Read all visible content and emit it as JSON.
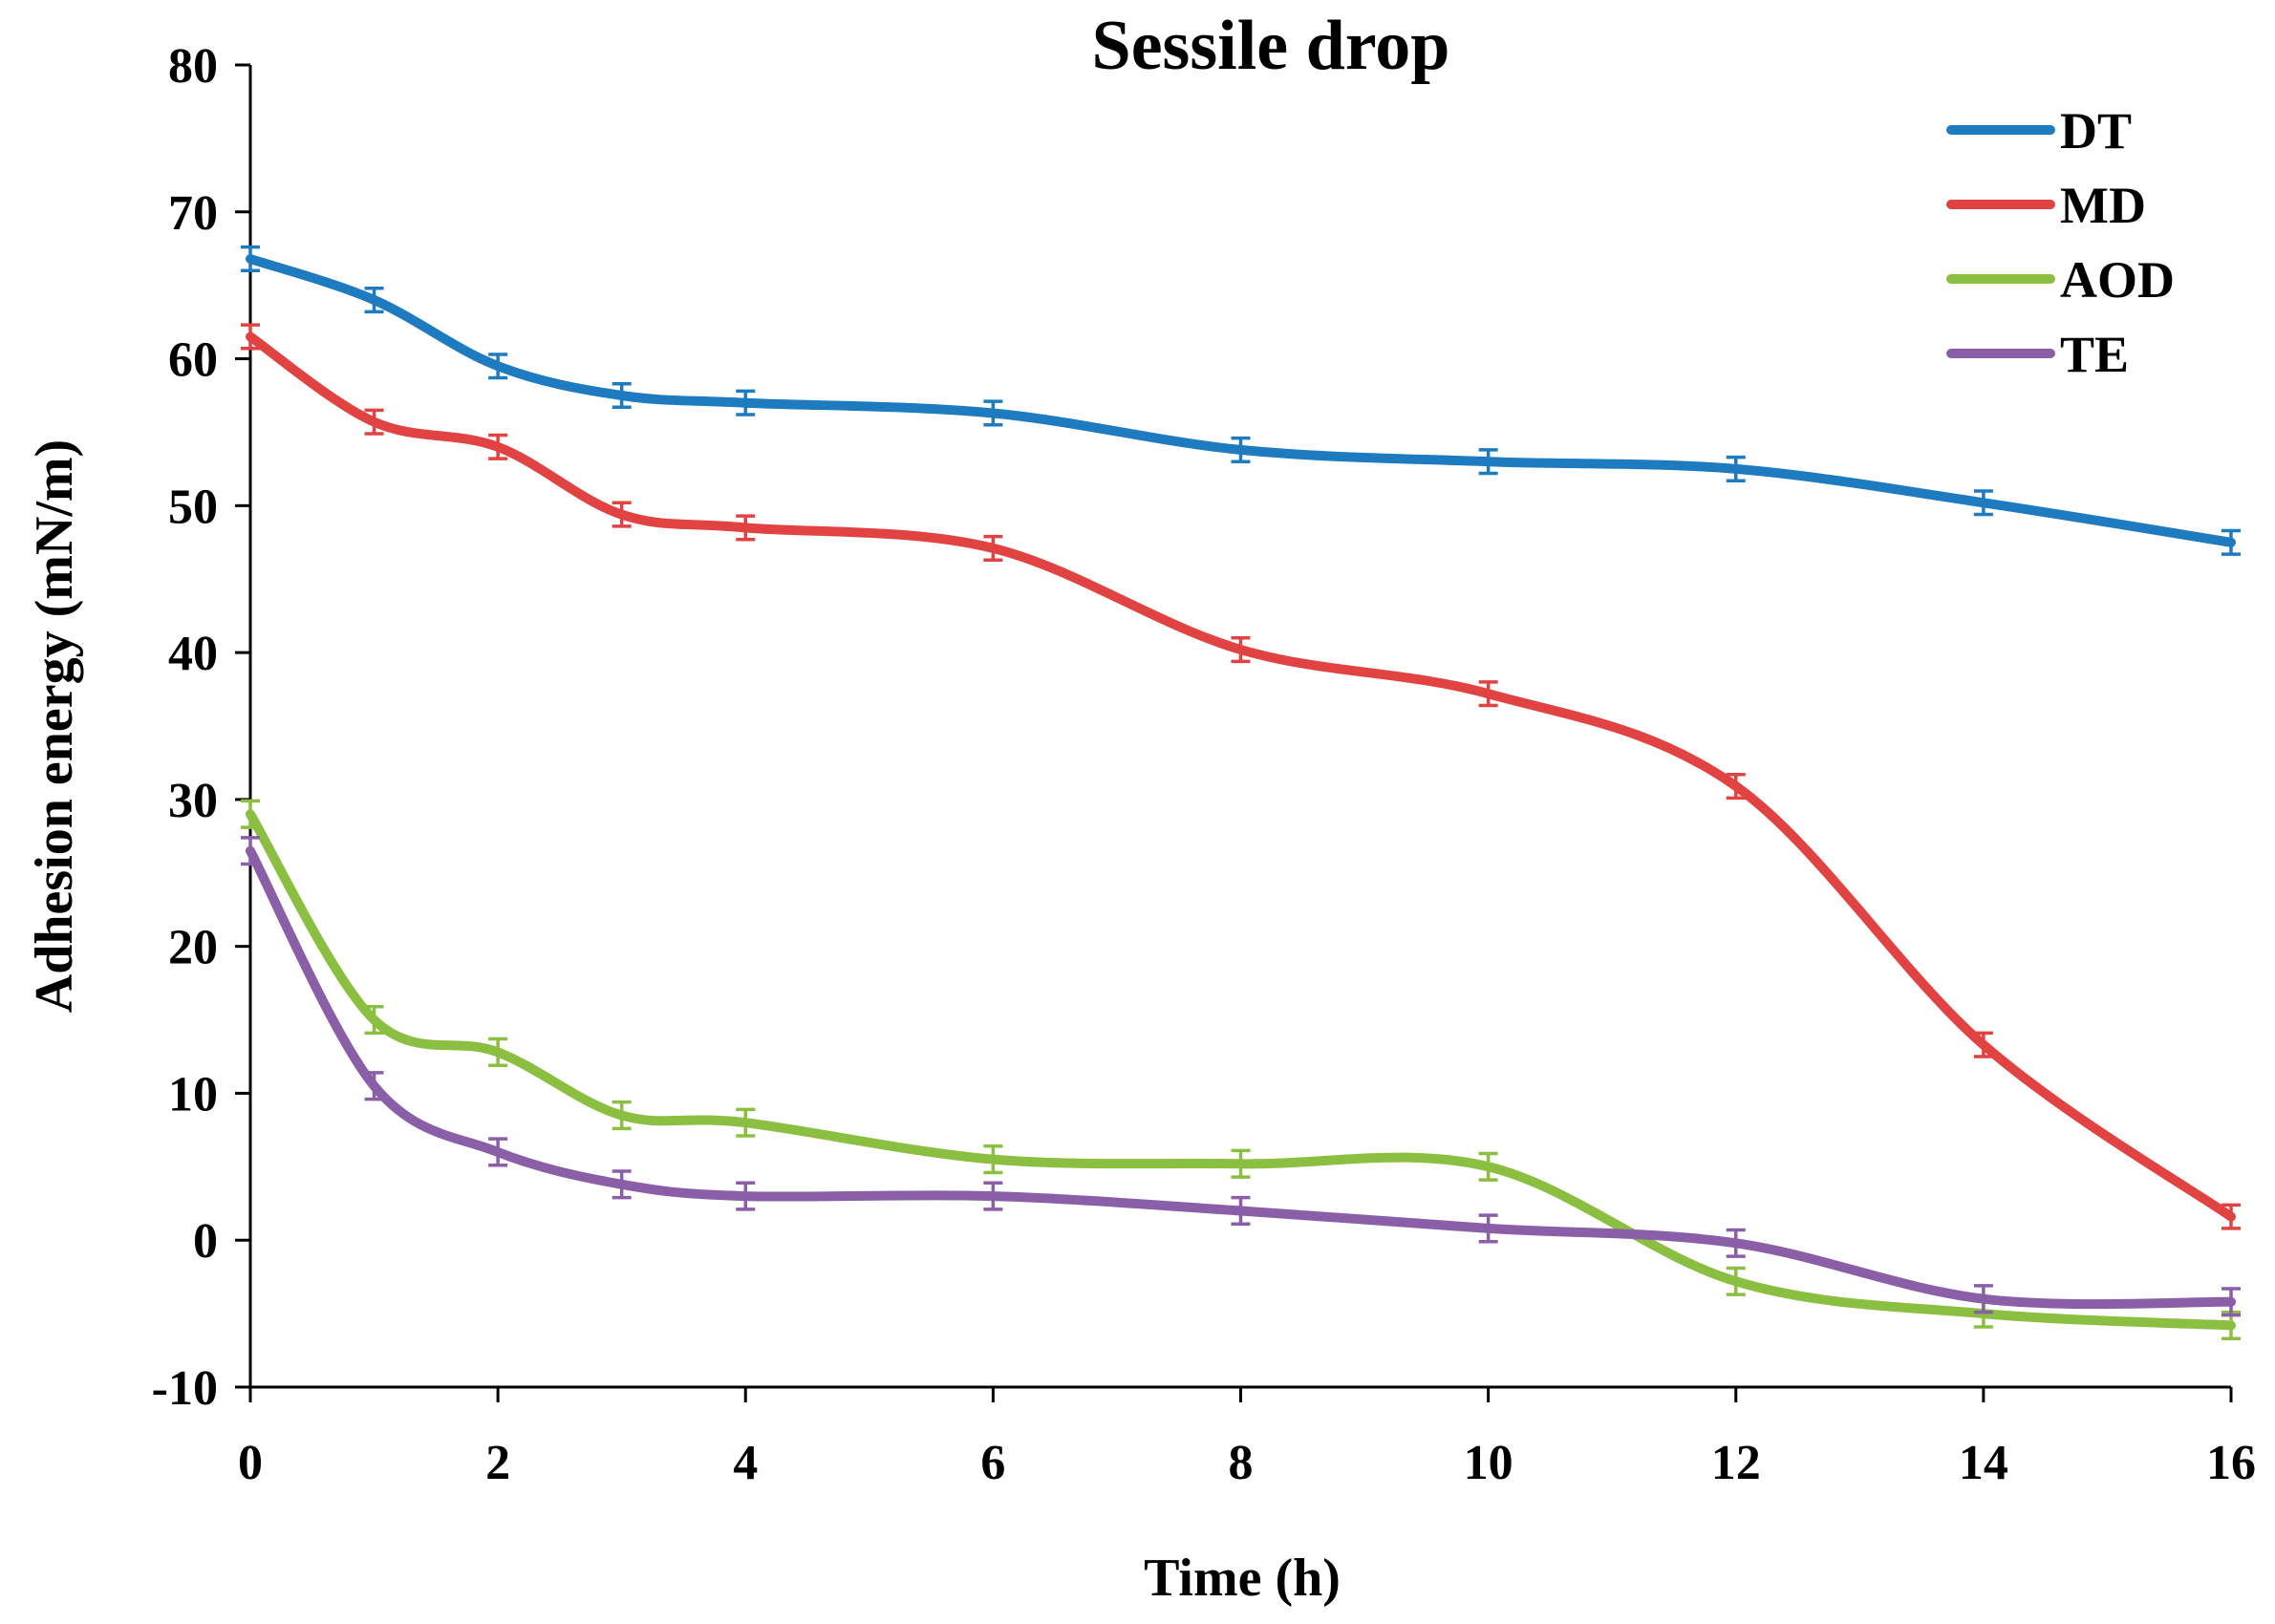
{
  "chart_data": {
    "type": "line",
    "title": "Sessile drop",
    "xlabel": "Time  (h)",
    "ylabel": "Adhesion energy (mN/m)",
    "xlim": [
      0,
      16
    ],
    "ylim": [
      -10,
      80
    ],
    "xticks": [
      0,
      2,
      4,
      6,
      8,
      10,
      12,
      14,
      16
    ],
    "yticks": [
      -10,
      0,
      10,
      20,
      30,
      40,
      50,
      60,
      70,
      80
    ],
    "grid": false,
    "legend_position": "top-right",
    "series": [
      {
        "name": "DT",
        "color": "#1F7BC0",
        "x": [
          0,
          1,
          2,
          3,
          4,
          6,
          8,
          10,
          12,
          14,
          16
        ],
        "y": [
          66.8,
          64.0,
          59.5,
          57.5,
          57.0,
          56.3,
          53.8,
          53.0,
          52.5,
          50.2,
          47.5
        ],
        "err": 0.8
      },
      {
        "name": "MD",
        "color": "#E04342",
        "x": [
          0,
          1,
          2,
          3,
          4,
          6,
          8,
          10,
          12,
          14,
          16
        ],
        "y": [
          61.5,
          55.7,
          54.0,
          49.4,
          48.5,
          47.1,
          40.2,
          37.2,
          30.9,
          13.3,
          1.6
        ],
        "err": 0.8
      },
      {
        "name": "AOD",
        "color": "#8BBF41",
        "x": [
          0,
          1,
          2,
          3,
          4,
          6,
          8,
          10,
          12,
          14,
          16
        ],
        "y": [
          29.0,
          15.0,
          12.8,
          8.5,
          8.0,
          5.5,
          5.2,
          5.0,
          -2.8,
          -5.0,
          -5.8
        ],
        "err": 0.9
      },
      {
        "name": "TE",
        "color": "#8A5FA8",
        "x": [
          0,
          1,
          2,
          3,
          4,
          6,
          8,
          10,
          12,
          14,
          16
        ],
        "y": [
          26.5,
          10.5,
          6.0,
          3.8,
          3.0,
          3.0,
          2.0,
          0.8,
          -0.2,
          -4.0,
          -4.2
        ],
        "err": 0.9
      }
    ]
  }
}
